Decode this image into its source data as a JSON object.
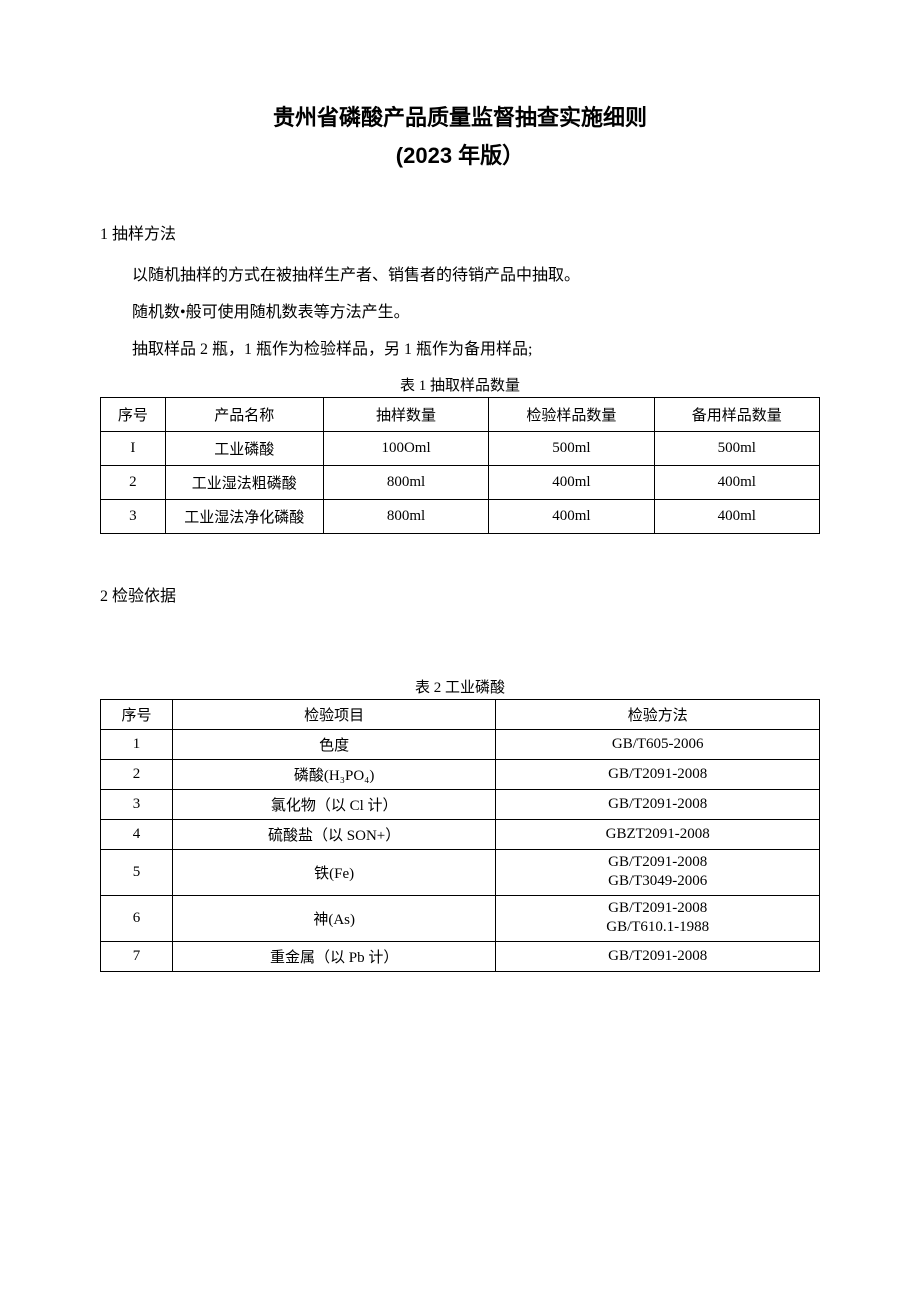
{
  "title": {
    "main": "贵州省磷酸产品质量监督抽查实施细则",
    "sub": "(2023 年版）"
  },
  "section1": {
    "heading": "1 抽样方法",
    "paragraphs": [
      "以随机抽样的方式在被抽样生产者、销售者的待销产品中抽取。",
      "随机数•般可使用随机数表等方法产生。",
      "抽取样品 2 瓶，1 瓶作为检验样品，另 1 瓶作为备用样品;"
    ]
  },
  "table1": {
    "caption": "表 1 抽取样品数量",
    "headers": [
      "序号",
      "产品名称",
      "抽样数量",
      "检验样品数量",
      "备用样品数量"
    ],
    "rows": [
      [
        "I",
        "工业磷酸",
        "100Oml",
        "500ml",
        "500ml"
      ],
      [
        "2",
        "工业湿法粗磷酸",
        "800ml",
        "400ml",
        "400ml"
      ],
      [
        "3",
        "工业湿法净化磷酸",
        "800ml",
        "400ml",
        "400ml"
      ]
    ]
  },
  "section2": {
    "heading": "2 检验依据"
  },
  "table2": {
    "caption": "表 2 工业磷酸",
    "headers": [
      "序号",
      "检验项目",
      "检验方法"
    ],
    "rows": [
      {
        "no": "1",
        "item": "色度",
        "method": "GB/T605-2006"
      },
      {
        "no": "2",
        "item": "磷酸(H₃PO₄)",
        "method": "GB/T2091-2008"
      },
      {
        "no": "3",
        "item": "氯化物（以 Cl 计）",
        "method": "GB/T2091-2008"
      },
      {
        "no": "4",
        "item": "硫酸盐（以 SON+）",
        "method": "GBZT2091-2008"
      },
      {
        "no": "5",
        "item": "铁(Fe)",
        "method": "GB/T2091-2008\nGB/T3049-2006"
      },
      {
        "no": "6",
        "item": "神(As)",
        "method": "GB/T2091-2008\nGB/T610.1-1988"
      },
      {
        "no": "7",
        "item": "重金属（以 Pb 计）",
        "method": "GB/T2091-2008"
      }
    ]
  },
  "style": {
    "background_color": "#ffffff",
    "text_color": "#000000",
    "border_color": "#000000",
    "title_fontsize": 22,
    "body_fontsize": 16,
    "table_fontsize": 15
  }
}
